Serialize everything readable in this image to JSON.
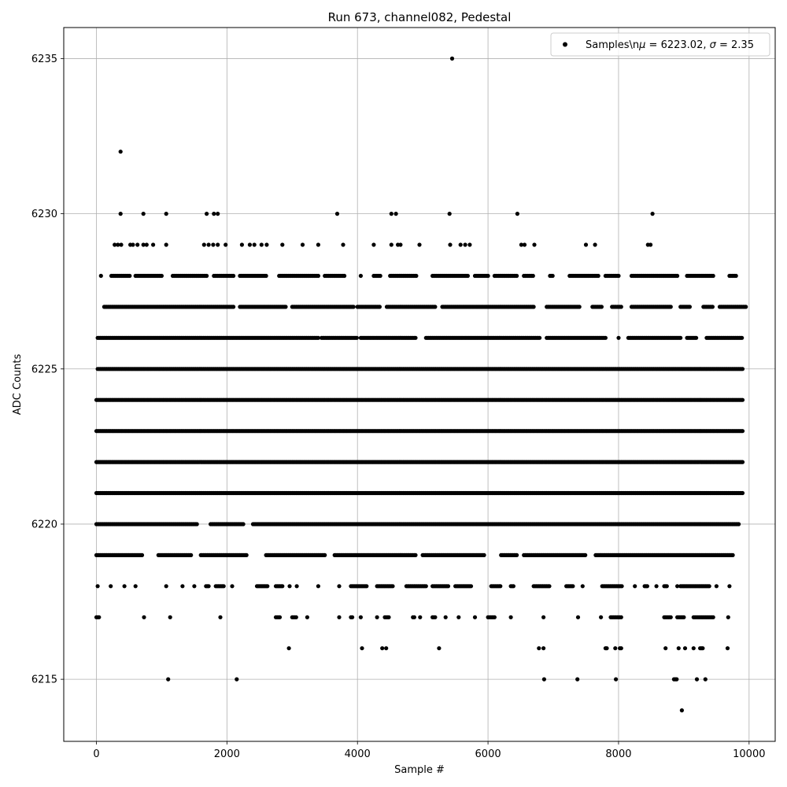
{
  "chart_data": {
    "type": "scatter",
    "title": "Run 673, channel082, Pedestal",
    "xlabel": "Sample #",
    "ylabel": "ADC Counts",
    "xlim": [
      -500,
      10400
    ],
    "ylim": [
      6213,
      6236
    ],
    "xticks": [
      0,
      2000,
      4000,
      6000,
      8000,
      10000
    ],
    "xtick_labels": [
      "0",
      "2000",
      "4000",
      "6000",
      "8000",
      "10000"
    ],
    "yticks": [
      6215,
      6220,
      6225,
      6230,
      6235
    ],
    "ytick_labels": [
      "6215",
      "6220",
      "6225",
      "6230",
      "6235"
    ],
    "grid": true,
    "legend_position": "top-right",
    "marker_color": "#000000",
    "series": [
      {
        "name": "Samples\\nμ = 6223.02, σ = 2.35",
        "legend_prefix": "Samples\\n",
        "legend_mu_symbol": "μ",
        "legend_mu_value": " = 6223.02, ",
        "legend_sigma_symbol": "σ",
        "legend_sigma_value": " = 2.35",
        "points": [
          [
            5450,
            6235
          ],
          [
            370,
            6232
          ],
          [
            370,
            6230
          ],
          [
            720,
            6230
          ],
          [
            1070,
            6230
          ],
          [
            1690,
            6230
          ],
          [
            1800,
            6230
          ],
          [
            1860,
            6230
          ],
          [
            3690,
            6230
          ],
          [
            4520,
            6230
          ],
          [
            4590,
            6230
          ],
          [
            5410,
            6230
          ],
          [
            6450,
            6230
          ],
          [
            8520,
            6230
          ],
          [
            280,
            6229
          ],
          [
            330,
            6229
          ],
          [
            380,
            6229
          ],
          [
            520,
            6229
          ],
          [
            560,
            6229
          ],
          [
            630,
            6229
          ],
          [
            720,
            6229
          ],
          [
            770,
            6229
          ],
          [
            870,
            6229
          ],
          [
            1070,
            6229
          ],
          [
            1650,
            6229
          ],
          [
            1720,
            6229
          ],
          [
            1790,
            6229
          ],
          [
            1860,
            6229
          ],
          [
            1980,
            6229
          ],
          [
            2230,
            6229
          ],
          [
            2350,
            6229
          ],
          [
            2420,
            6229
          ],
          [
            2530,
            6229
          ],
          [
            2610,
            6229
          ],
          [
            2850,
            6229
          ],
          [
            3160,
            6229
          ],
          [
            3400,
            6229
          ],
          [
            3780,
            6229
          ],
          [
            4250,
            6229
          ],
          [
            4520,
            6229
          ],
          [
            4620,
            6229
          ],
          [
            4660,
            6229
          ],
          [
            4950,
            6229
          ],
          [
            5420,
            6229
          ],
          [
            5580,
            6229
          ],
          [
            5650,
            6229
          ],
          [
            5720,
            6229
          ],
          [
            6510,
            6229
          ],
          [
            6560,
            6229
          ],
          [
            6710,
            6229
          ],
          [
            7500,
            6229
          ],
          [
            7640,
            6229
          ],
          [
            8450,
            6229
          ],
          [
            8490,
            6229
          ]
        ],
        "bands": [
          {
            "y": 6228,
            "x_ranges": [
              [
                70,
                70
              ],
              [
                230,
                520
              ],
              [
                600,
                1000
              ],
              [
                1170,
                1700
              ],
              [
                1800,
                2100
              ],
              [
                2200,
                2600
              ],
              [
                2800,
                3400
              ],
              [
                3500,
                3800
              ],
              [
                4050,
                4050
              ],
              [
                4250,
                4350
              ],
              [
                4500,
                4900
              ],
              [
                5150,
                5700
              ],
              [
                5800,
                6000
              ],
              [
                6100,
                6450
              ],
              [
                6550,
                6700
              ],
              [
                6950,
                7000
              ],
              [
                7250,
                7700
              ],
              [
                7800,
                8000
              ],
              [
                8200,
                8900
              ],
              [
                9050,
                9450
              ],
              [
                9700,
                9800
              ]
            ]
          },
          {
            "y": 6227,
            "x_ranges": [
              [
                120,
                2100
              ],
              [
                2200,
                2900
              ],
              [
                3000,
                3950
              ],
              [
                4000,
                4350
              ],
              [
                4450,
                5200
              ],
              [
                5300,
                6700
              ],
              [
                6900,
                7400
              ],
              [
                7600,
                7750
              ],
              [
                7900,
                8050
              ],
              [
                8200,
                8800
              ],
              [
                8950,
                9100
              ],
              [
                9300,
                9450
              ],
              [
                9550,
                9950
              ]
            ]
          },
          {
            "y": 6226,
            "x_ranges": [
              [
                20,
                3400
              ],
              [
                3450,
                4000
              ],
              [
                4050,
                4900
              ],
              [
                5050,
                6800
              ],
              [
                6900,
                7800
              ],
              [
                8000,
                8000
              ],
              [
                8150,
                8950
              ],
              [
                9050,
                9200
              ],
              [
                9350,
                9900
              ]
            ]
          },
          {
            "y": 6225,
            "x_ranges": [
              [
                20,
                9900
              ]
            ]
          },
          {
            "y": 6224,
            "x_ranges": [
              [
                0,
                9900
              ]
            ]
          },
          {
            "y": 6223,
            "x_ranges": [
              [
                0,
                9900
              ]
            ]
          },
          {
            "y": 6222,
            "x_ranges": [
              [
                0,
                9900
              ]
            ]
          },
          {
            "y": 6221,
            "x_ranges": [
              [
                0,
                9900
              ]
            ]
          },
          {
            "y": 6220,
            "x_ranges": [
              [
                0,
                1550
              ],
              [
                1750,
                2250
              ],
              [
                2400,
                9850
              ]
            ]
          },
          {
            "y": 6219,
            "x_ranges": [
              [
                0,
                700
              ],
              [
                950,
                1450
              ],
              [
                1600,
                2300
              ],
              [
                2600,
                3500
              ],
              [
                3650,
                4900
              ],
              [
                5000,
                5950
              ],
              [
                6200,
                6450
              ],
              [
                6550,
                7500
              ],
              [
                7650,
                9750
              ]
            ]
          },
          {
            "y": 6218,
            "x_ranges": [
              [
                20,
                20
              ],
              [
                220,
                220
              ],
              [
                430,
                430
              ],
              [
                600,
                600
              ],
              [
                1070,
                1070
              ],
              [
                1320,
                1320
              ],
              [
                1500,
                1500
              ],
              [
                1680,
                1720
              ],
              [
                1830,
                1960
              ],
              [
                2080,
                2080
              ],
              [
                2460,
                2620
              ],
              [
                2750,
                2850
              ],
              [
                2960,
                2960
              ],
              [
                3070,
                3070
              ],
              [
                3400,
                3400
              ],
              [
                3720,
                3720
              ],
              [
                3900,
                4150
              ],
              [
                4300,
                4550
              ],
              [
                4750,
                5050
              ],
              [
                5150,
                5400
              ],
              [
                5500,
                5750
              ],
              [
                6050,
                6200
              ],
              [
                6350,
                6400
              ],
              [
                6700,
                6950
              ],
              [
                7200,
                7300
              ],
              [
                7450,
                7450
              ],
              [
                7750,
                8050
              ],
              [
                8250,
                8250
              ],
              [
                8400,
                8450
              ],
              [
                8580,
                8580
              ],
              [
                8700,
                8750
              ],
              [
                8900,
                8900
              ],
              [
                8950,
                9400
              ],
              [
                9500,
                9500
              ],
              [
                9700,
                9700
              ]
            ]
          },
          {
            "y": 6217,
            "x_ranges": [
              [
                0,
                50
              ],
              [
                730,
                730
              ],
              [
                1130,
                1130
              ],
              [
                1900,
                1900
              ],
              [
                2750,
                2820
              ],
              [
                3000,
                3070
              ],
              [
                3230,
                3230
              ],
              [
                3720,
                3720
              ],
              [
                3900,
                3920
              ],
              [
                4050,
                4050
              ],
              [
                4300,
                4300
              ],
              [
                4420,
                4480
              ],
              [
                4850,
                4880
              ],
              [
                4960,
                4960
              ],
              [
                5150,
                5200
              ],
              [
                5350,
                5350
              ],
              [
                5550,
                5550
              ],
              [
                5800,
                5800
              ],
              [
                6000,
                6100
              ],
              [
                6350,
                6350
              ],
              [
                6850,
                6850
              ],
              [
                7380,
                7380
              ],
              [
                7730,
                7730
              ],
              [
                7880,
                8040
              ],
              [
                8700,
                8800
              ],
              [
                8900,
                9000
              ],
              [
                9150,
                9450
              ],
              [
                9680,
                9680
              ]
            ]
          },
          {
            "y": 6216,
            "x_ranges": [
              [
                2950,
                2950
              ],
              [
                4070,
                4070
              ],
              [
                4380,
                4380
              ],
              [
                4440,
                4440
              ],
              [
                5250,
                5250
              ],
              [
                6780,
                6780
              ],
              [
                6850,
                6850
              ],
              [
                7800,
                7820
              ],
              [
                7950,
                7950
              ],
              [
                8020,
                8040
              ],
              [
                8720,
                8720
              ],
              [
                8920,
                8920
              ],
              [
                9020,
                9020
              ],
              [
                9150,
                9150
              ],
              [
                9250,
                9290
              ],
              [
                9670,
                9670
              ]
            ]
          },
          {
            "y": 6215,
            "x_ranges": [
              [
                1100,
                1100
              ],
              [
                2150,
                2150
              ],
              [
                6860,
                6860
              ],
              [
                7370,
                7370
              ],
              [
                7960,
                7960
              ],
              [
                8850,
                8890
              ],
              [
                9200,
                9200
              ],
              [
                9330,
                9330
              ]
            ]
          },
          {
            "y": 6214,
            "x_ranges": [
              [
                8970,
                8970
              ]
            ]
          }
        ],
        "band_spacing": 20
      }
    ]
  }
}
